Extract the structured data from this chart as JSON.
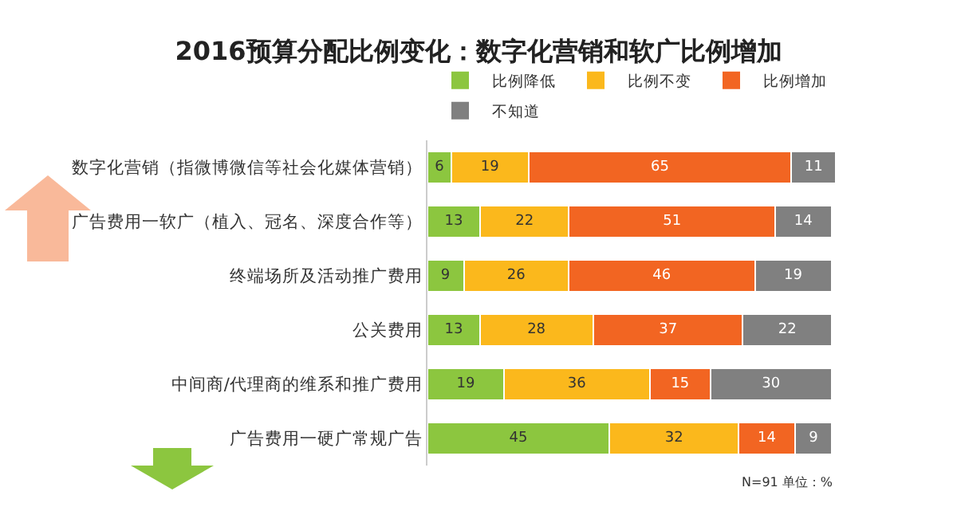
{
  "chart_data": {
    "type": "bar",
    "orientation": "horizontal",
    "stacked": true,
    "title": "2016预算分配比例变化：数字化营销和软广比例增加",
    "categories": [
      "数字化营销（指微博微信等社会化媒体营销）",
      "广告费用一软广（植入、冠名、深度合作等）",
      "终端场所及活动推广费用",
      "公关费用",
      "中间商/代理商的维系和推广费用",
      "广告费用一硬广常规广告"
    ],
    "series": [
      {
        "name": "比例降低",
        "color": "#8cc63f",
        "values": [
          6,
          13,
          9,
          13,
          19,
          45
        ]
      },
      {
        "name": "比例不变",
        "color": "#fbb81c",
        "values": [
          19,
          22,
          26,
          28,
          36,
          32
        ]
      },
      {
        "name": "比例增加",
        "color": "#f26522",
        "values": [
          65,
          51,
          46,
          37,
          15,
          14
        ]
      },
      {
        "name": "不知道",
        "color": "#808080",
        "values": [
          11,
          14,
          19,
          22,
          30,
          9
        ]
      }
    ],
    "xlim": [
      0,
      101
    ],
    "data_labels": true,
    "legend": "top",
    "tick_labels": "y",
    "grid": false,
    "annotations": [
      "N=91 单位：%"
    ]
  }
}
